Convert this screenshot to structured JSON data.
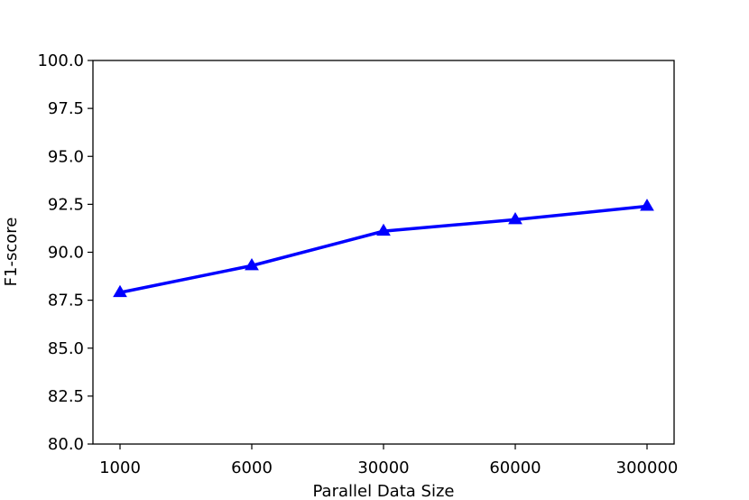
{
  "chart_data": {
    "type": "line",
    "categories": [
      "1000",
      "6000",
      "30000",
      "60000",
      "300000"
    ],
    "series": [
      {
        "values": [
          87.9,
          89.3,
          91.1,
          91.7,
          92.4
        ],
        "color": "#0000ff",
        "marker": "triangle-up"
      }
    ],
    "xlabel": "Parallel Data Size",
    "ylabel": "F1-score",
    "ylim": [
      80.0,
      100.0
    ],
    "yticks": [
      "80.0",
      "82.5",
      "85.0",
      "87.5",
      "90.0",
      "92.5",
      "95.0",
      "97.5",
      "100.0"
    ],
    "grid": false,
    "legend": "none"
  }
}
